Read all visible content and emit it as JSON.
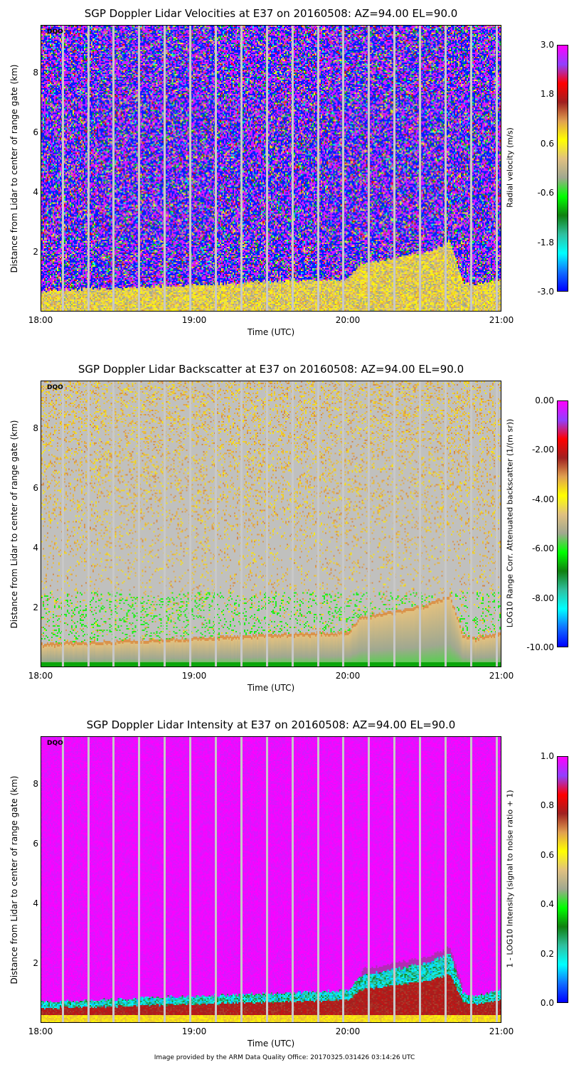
{
  "chart_data": [
    {
      "type": "heatmap",
      "title": "SGP Doppler Lidar Velocities at E37 on 20160508: AZ=94.00 EL=90.0",
      "xlabel": "Time (UTC)",
      "ylabel": "Distance from Lidar to center of range gate (km)",
      "xticks": [
        "18:00",
        "19:00",
        "20:00",
        "21:00"
      ],
      "yticks": [
        "2",
        "4",
        "6",
        "8"
      ],
      "xlim_min": [
        0,
        180
      ],
      "ylim": [
        0,
        9.6
      ],
      "colorbar": {
        "label": "Radial velocity (m/s)",
        "ticks": [
          "3.0",
          "1.8",
          "0.6",
          "-0.6",
          "-1.8",
          "-3.0"
        ],
        "range": [
          -3,
          3
        ]
      },
      "dqo_label": "DQO",
      "kind": "velocity"
    },
    {
      "type": "heatmap",
      "title": "SGP Doppler Lidar Backscatter at E37 on 20160508: AZ=94.00 EL=90.0",
      "xlabel": "Time (UTC)",
      "ylabel": "Distance from Lidar to center of range gate (km)",
      "xticks": [
        "18:00",
        "19:00",
        "20:00",
        "21:00"
      ],
      "yticks": [
        "2",
        "4",
        "6",
        "8"
      ],
      "xlim_min": [
        0,
        180
      ],
      "ylim": [
        0,
        9.6
      ],
      "colorbar": {
        "label": "LOG10 Range Corr. Attenuated backscatter (1/(m sr))",
        "ticks": [
          "0.00",
          "-2.00",
          "-4.00",
          "-6.00",
          "-8.00",
          "-10.00"
        ],
        "range": [
          -10,
          0
        ]
      },
      "dqo_label": "DQO",
      "kind": "backscatter"
    },
    {
      "type": "heatmap",
      "title": "SGP Doppler Lidar Intensity at E37 on 20160508: AZ=94.00 EL=90.0",
      "xlabel": "Time (UTC)",
      "ylabel": "Distance from Lidar to center of range gate (km)",
      "xticks": [
        "18:00",
        "19:00",
        "20:00",
        "21:00"
      ],
      "yticks": [
        "2",
        "4",
        "6",
        "8"
      ],
      "xlim_min": [
        0,
        180
      ],
      "ylim": [
        0,
        9.6
      ],
      "colorbar": {
        "label": "1 - LOG10 Intensity (signal to noise ratio + 1)",
        "ticks": [
          "1.0",
          "0.8",
          "0.6",
          "0.4",
          "0.2",
          "0.0"
        ],
        "range": [
          0,
          1
        ]
      },
      "dqo_label": "DQO",
      "kind": "intensity"
    }
  ],
  "boundary_layer_top_km": {
    "time_min": [
      0,
      30,
      60,
      90,
      120,
      125,
      150,
      160,
      165,
      170,
      180
    ],
    "height": [
      0.7,
      0.8,
      0.9,
      1.0,
      1.1,
      1.6,
      2.0,
      2.35,
      1.0,
      0.9,
      1.1
    ]
  },
  "data_gap_times_min": [
    8,
    18,
    28,
    38,
    48,
    58,
    68,
    78,
    88,
    98,
    108,
    118,
    128,
    138,
    148,
    158,
    168,
    178
  ],
  "colormap": [
    "#0000ff",
    "#1070ff",
    "#00ffff",
    "#30c0a0",
    "#108010",
    "#00ff00",
    "#a0a890",
    "#e0c080",
    "#ffff00",
    "#e0a050",
    "#a02020",
    "#ff0000",
    "#9040ff",
    "#ff00ff"
  ],
  "footer": "Image provided by the ARM Data Quality Office: 20170325.031426 03:14:26 UTC"
}
